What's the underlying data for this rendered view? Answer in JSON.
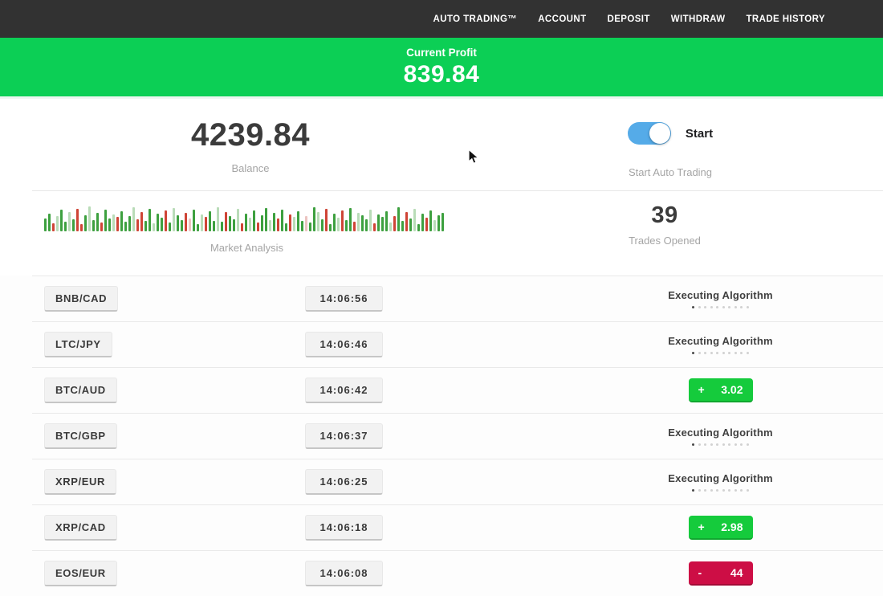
{
  "nav": {
    "items": [
      "AUTO TRADING™",
      "ACCOUNT",
      "DEPOSIT",
      "WITHDRAW",
      "TRADE HISTORY"
    ]
  },
  "profit": {
    "label": "Current Profit",
    "value": "839.84"
  },
  "stats": {
    "balance": {
      "value": "4239.84",
      "label": "Balance"
    },
    "auto_trading": {
      "toggle_label": "Start",
      "label": "Start Auto Trading",
      "enabled": true
    },
    "trades_opened": {
      "value": "39",
      "label": "Trades Opened"
    },
    "market_analysis": {
      "label": "Market Analysis"
    }
  },
  "status": {
    "executing_label": "Executing Algorithm"
  },
  "chart_data": {
    "type": "bar",
    "title": "Market Analysis",
    "xlabel": "",
    "ylabel": "",
    "ylim": [
      0,
      32
    ],
    "values": [
      16,
      22,
      10,
      19,
      27,
      12,
      24,
      15,
      28,
      9,
      20,
      31,
      14,
      23,
      11,
      27,
      16,
      21,
      18,
      25,
      12,
      19,
      30,
      15,
      24,
      13,
      28,
      10,
      22,
      17,
      26,
      11,
      29,
      20,
      14,
      23,
      16,
      27,
      9,
      21,
      18,
      25,
      13,
      30,
      12,
      24,
      19,
      15,
      28,
      10,
      22,
      17,
      26,
      11,
      20,
      29,
      14,
      23,
      16,
      27,
      10,
      21,
      18,
      25,
      13,
      19,
      11,
      30,
      24,
      15,
      28,
      9,
      22,
      17,
      26,
      14,
      29,
      12,
      23,
      20,
      15,
      27,
      10,
      21,
      18,
      25,
      11,
      19,
      30,
      13,
      24,
      16,
      28,
      9,
      22,
      17,
      26,
      14,
      20,
      23
    ],
    "colors": [
      "g",
      "g",
      "r",
      "lg",
      "g",
      "g",
      "lg",
      "g",
      "r",
      "r",
      "g",
      "lg",
      "g",
      "g",
      "r",
      "g",
      "g",
      "lg",
      "r",
      "g",
      "g",
      "g",
      "lg",
      "r",
      "r",
      "g",
      "g",
      "lg",
      "g",
      "g",
      "r",
      "g",
      "lg",
      "g",
      "g",
      "r",
      "lr",
      "g",
      "g",
      "lg",
      "r",
      "g",
      "g",
      "lg",
      "g",
      "r",
      "g",
      "g",
      "lg",
      "r",
      "g",
      "lg",
      "g",
      "r",
      "g",
      "g",
      "lg",
      "g",
      "r",
      "g",
      "g",
      "r",
      "lg",
      "g",
      "g",
      "lr",
      "g",
      "g",
      "lg",
      "g",
      "r",
      "g",
      "g",
      "lg",
      "r",
      "g",
      "g",
      "r",
      "lg",
      "g",
      "g",
      "lg",
      "r",
      "g",
      "g",
      "g",
      "lg",
      "r",
      "g",
      "g",
      "r",
      "g",
      "lg",
      "g",
      "g",
      "r",
      "g",
      "lg",
      "g",
      "g"
    ],
    "palette": {
      "g": "#3da03f",
      "r": "#cf4436",
      "lg": "#b9dcb8",
      "lr": "#ecc3c0"
    }
  },
  "trades": [
    {
      "pair": "BNB/CAD",
      "time": "14:06:56",
      "status": "executing"
    },
    {
      "pair": "LTC/JPY",
      "time": "14:06:46",
      "status": "executing"
    },
    {
      "pair": "BTC/AUD",
      "time": "14:06:42",
      "status": "profit",
      "sign": "+",
      "value": "3.02"
    },
    {
      "pair": "BTC/GBP",
      "time": "14:06:37",
      "status": "executing"
    },
    {
      "pair": "XRP/EUR",
      "time": "14:06:25",
      "status": "executing"
    },
    {
      "pair": "XRP/CAD",
      "time": "14:06:18",
      "status": "profit",
      "sign": "+",
      "value": "2.98"
    },
    {
      "pair": "EOS/EUR",
      "time": "14:06:08",
      "status": "loss",
      "sign": "-",
      "value": "44"
    }
  ],
  "colors": {
    "navbar": "#323232",
    "banner_green": "#0ccf55",
    "toggle_blue": "#55abe8",
    "profit_badge_green": "#15cb3c",
    "loss_badge_red": "#cd0e45"
  }
}
